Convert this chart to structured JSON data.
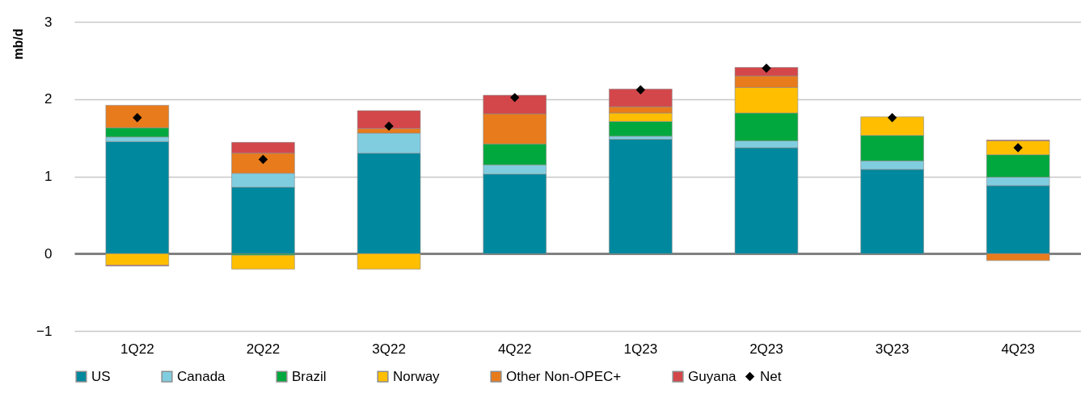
{
  "chart_data": {
    "type": "bar",
    "stacked": true,
    "ylabel": "mb/d",
    "categories": [
      "1Q22",
      "2Q22",
      "3Q22",
      "4Q22",
      "1Q23",
      "2Q23",
      "3Q23",
      "4Q23"
    ],
    "series": [
      {
        "name": "US",
        "color": "#00889e",
        "values": [
          1.45,
          0.86,
          1.3,
          1.03,
          1.48,
          1.37,
          1.09,
          0.88
        ]
      },
      {
        "name": "Canada",
        "color": "#80cde0",
        "values": [
          0.06,
          0.18,
          0.26,
          0.12,
          0.04,
          0.09,
          0.11,
          0.11
        ]
      },
      {
        "name": "Brazil",
        "color": "#00a83e",
        "values": [
          0.12,
          -0.02,
          null,
          0.27,
          0.19,
          0.36,
          0.33,
          0.29
        ]
      },
      {
        "name": "Norway",
        "color": "#ffbf00",
        "values": [
          -0.15,
          -0.18,
          -0.2,
          null,
          0.11,
          0.33,
          0.24,
          0.18
        ]
      },
      {
        "name": "Other Non-OPEC+",
        "color": "#e87b1c",
        "values": [
          0.29,
          0.26,
          0.06,
          0.39,
          0.08,
          0.15,
          null,
          -0.09
        ]
      },
      {
        "name": "Guyana",
        "color": "#d3474b",
        "values": [
          -0.01,
          0.14,
          0.23,
          0.24,
          0.23,
          0.11,
          null,
          0.01
        ]
      },
      {
        "name": "Net",
        "type": "scatter",
        "color": "#000000",
        "values": [
          1.76,
          1.22,
          1.65,
          2.02,
          2.12,
          2.4,
          1.76,
          1.37
        ]
      }
    ],
    "ylim": [
      -1,
      3
    ],
    "yticks": [
      -1,
      0,
      1,
      2,
      3
    ],
    "grid": "y",
    "legend": "bottom",
    "marker": "diamond"
  }
}
